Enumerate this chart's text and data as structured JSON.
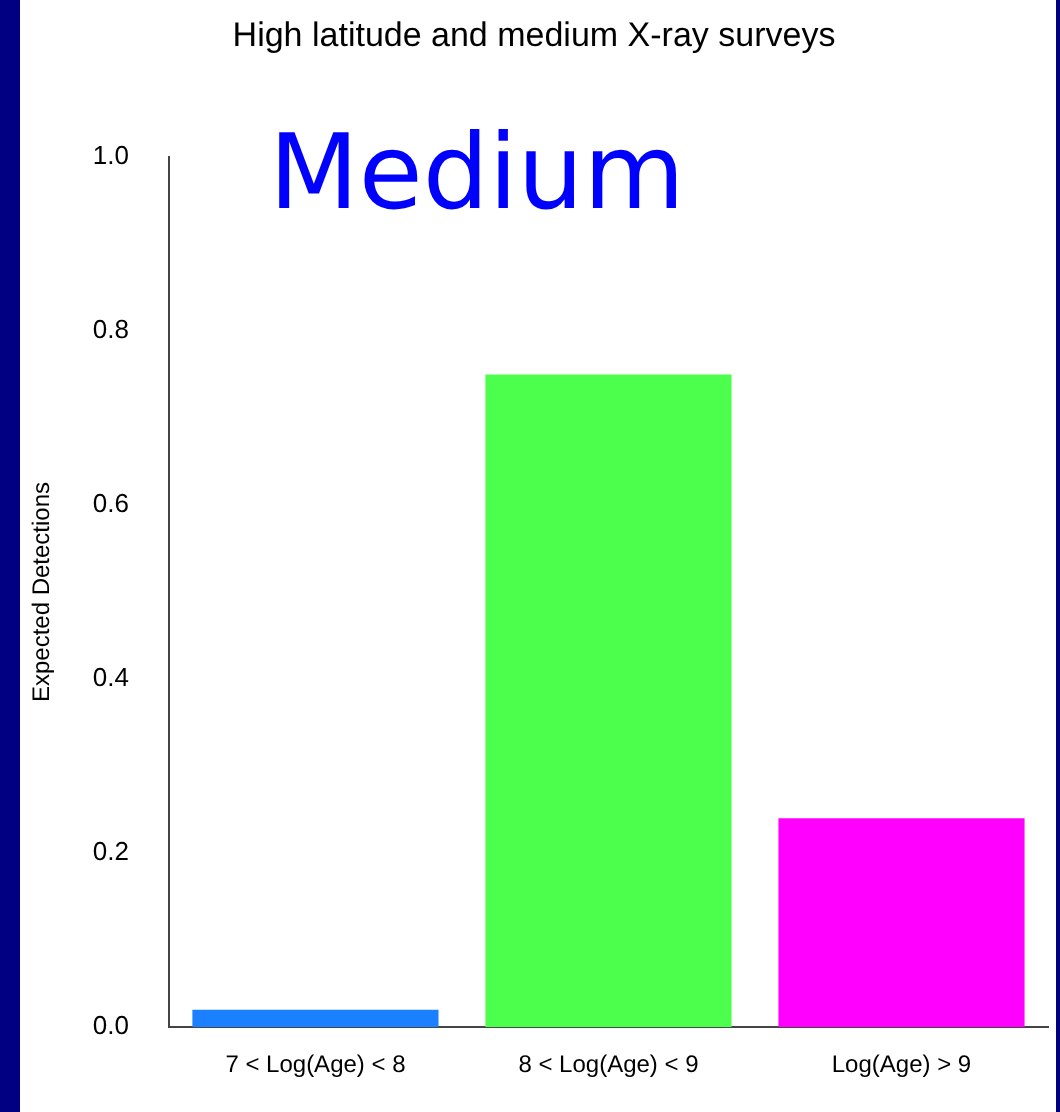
{
  "chart_data": {
    "type": "bar",
    "title": "High latitude and medium X-ray surveys",
    "ylabel": "Expected Detections",
    "categories": [
      "7 < Log(Age) < 8",
      "8 < Log(Age) < 9",
      "Log(Age) > 9"
    ],
    "values": [
      0.02,
      0.75,
      0.24
    ],
    "colors": [
      "#1a80ff",
      "#4dff4d",
      "#ff00ff"
    ],
    "ylim": [
      0,
      1
    ],
    "yticks": [
      {
        "value": 0,
        "label": "0.0"
      },
      0.2,
      0.4,
      0.6,
      0.8,
      {
        "value": 1,
        "label": "1.0"
      }
    ],
    "annotations": [
      "Medium"
    ],
    "grid": false,
    "legend": false
  }
}
